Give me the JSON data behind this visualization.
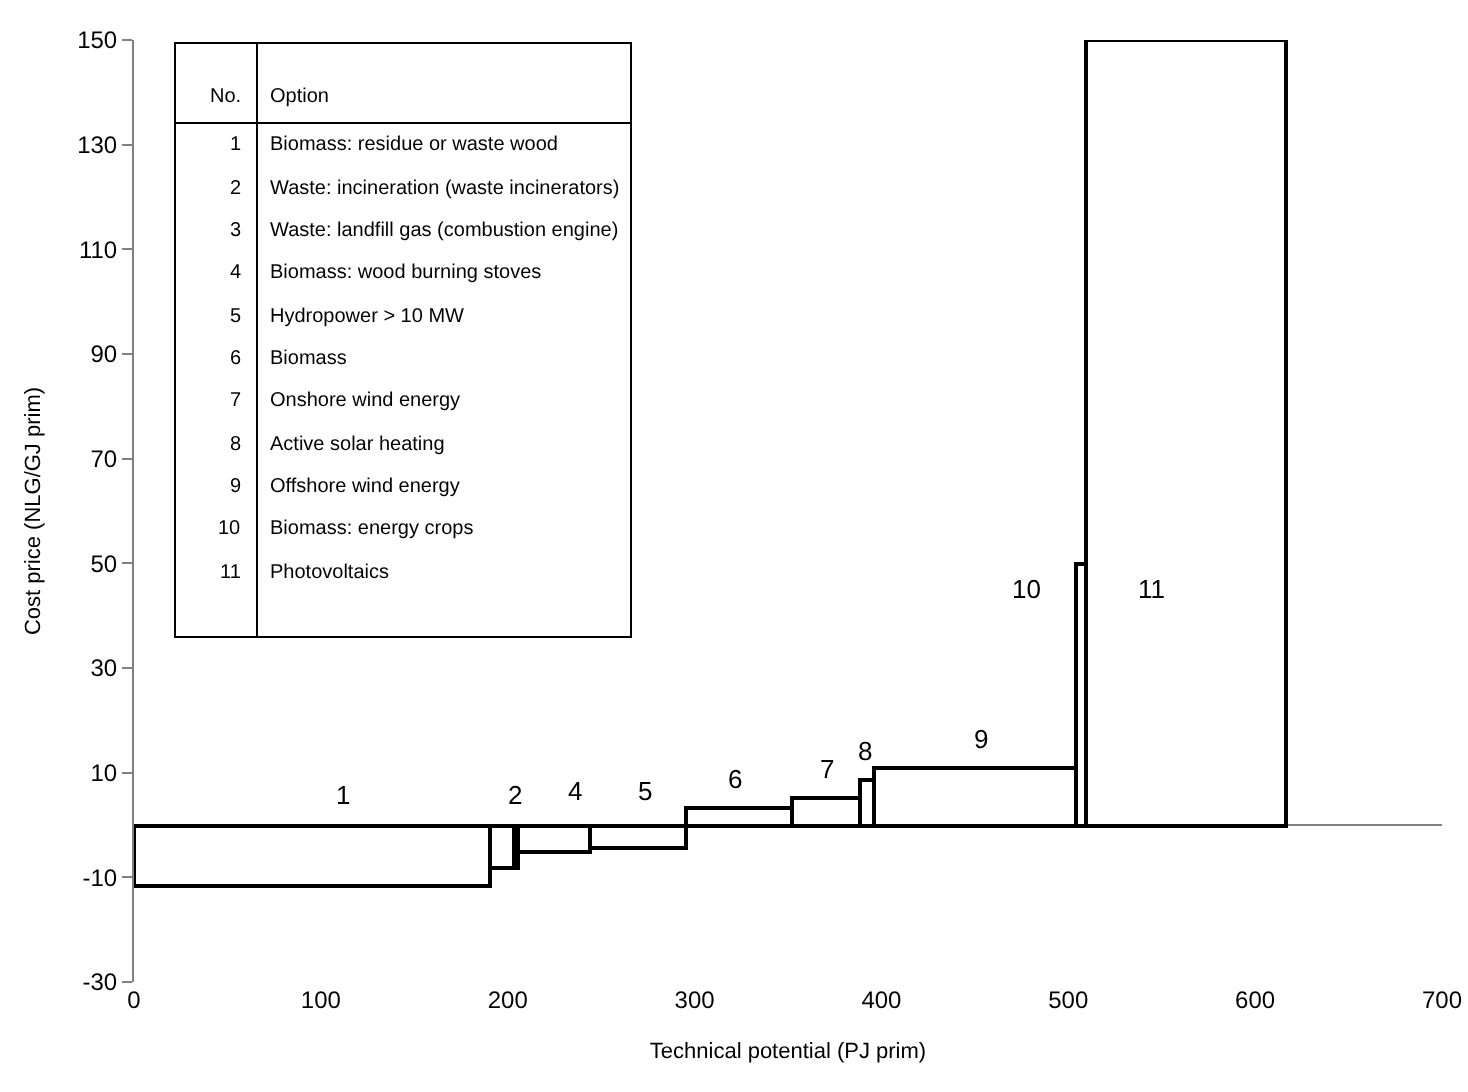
{
  "chart_data": {
    "type": "histogram",
    "xlabel": "Technical potential (PJ prim)",
    "ylabel": "Cost price (NLG/GJ prim)",
    "bins": [
      0,
      190,
      203,
      206,
      244,
      295,
      352,
      388,
      396,
      504,
      509,
      617
    ],
    "values": [
      -11.5,
      -8.4,
      -8.4,
      -5,
      -4.3,
      3.3,
      5.2,
      8.6,
      11,
      50,
      150
    ],
    "color": "#ffffff",
    "xlim": [
      0,
      700
    ],
    "xticks": [
      0,
      100,
      200,
      300,
      400,
      500,
      600,
      700
    ],
    "ylim": [
      -30,
      150
    ],
    "yticks": [
      -30,
      -10,
      10,
      30,
      50,
      70,
      90,
      110,
      130,
      150
    ],
    "annotations": [
      "1",
      "2",
      "4",
      "5",
      "6",
      "7",
      "8",
      "9",
      "10",
      "11",
      "No.",
      "Option",
      "1",
      "Biomass: residue or waste wood",
      "2",
      "Waste: incineration (waste incinerators)",
      "3",
      "Waste: landfill gas (combustion engine)",
      "4",
      "Biomass: wood burning stoves",
      "5",
      "Hydropower > 10 MW",
      "6",
      "Biomass",
      "7",
      "Onshore wind energy",
      "8",
      "Active solar heating",
      "9",
      "Offshore wind energy",
      "10",
      "Biomass: energy crops",
      "11",
      "Photovoltaics"
    ]
  }
}
